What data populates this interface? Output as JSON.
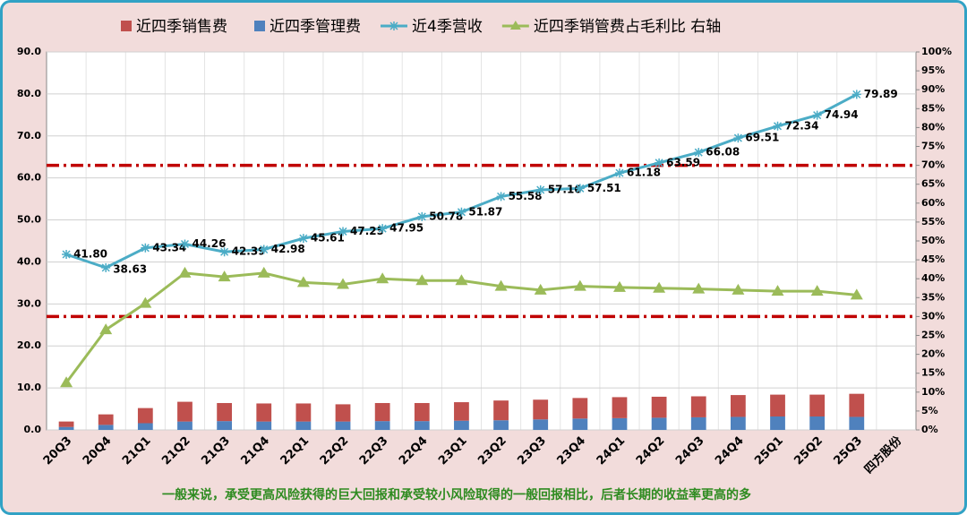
{
  "chart_data": {
    "type": "combo",
    "categories": [
      "20Q3",
      "20Q4",
      "21Q1",
      "21Q2",
      "21Q3",
      "21Q4",
      "22Q1",
      "22Q2",
      "22Q3",
      "22Q4",
      "23Q1",
      "23Q2",
      "23Q3",
      "23Q4",
      "24Q1",
      "24Q2",
      "24Q3",
      "24Q4",
      "25Q1",
      "25Q2",
      "25Q3",
      "四方股份"
    ],
    "series": [
      {
        "name": "近四季销售费",
        "type": "bar",
        "color": "#c0504d",
        "values": [
          1.3,
          2.5,
          3.6,
          4.7,
          4.3,
          4.3,
          4.3,
          4.1,
          4.3,
          4.3,
          4.4,
          4.7,
          4.7,
          4.9,
          5.0,
          5.0,
          5.0,
          5.2,
          5.2,
          5.2,
          5.5,
          null
        ]
      },
      {
        "name": "近四季管理费",
        "type": "bar",
        "color": "#4f81bd",
        "values": [
          0.7,
          1.2,
          1.6,
          2.0,
          2.1,
          2.0,
          2.0,
          2.0,
          2.1,
          2.1,
          2.2,
          2.3,
          2.5,
          2.7,
          2.8,
          2.9,
          3.0,
          3.1,
          3.2,
          3.2,
          3.1,
          null
        ]
      },
      {
        "name": "近4季营收",
        "type": "line",
        "marker": "star",
        "color": "#4bacc6",
        "values": [
          41.8,
          38.63,
          43.34,
          44.26,
          42.39,
          42.98,
          45.61,
          47.25,
          47.95,
          50.78,
          51.87,
          55.58,
          57.16,
          57.51,
          61.18,
          63.59,
          66.08,
          69.51,
          72.34,
          74.94,
          79.89,
          null
        ],
        "value_labels": [
          "41.80",
          "38.63",
          "43.34",
          "44.26",
          "42.39",
          "42.98",
          "45.61",
          "47.25",
          "47.95",
          "50.78",
          "51.87",
          "55.58",
          "57.16",
          "57.51",
          "61.18",
          "63.59",
          "66.08",
          "69.51",
          "72.34",
          "74.94",
          "79.89",
          null
        ]
      },
      {
        "name": "近四季销管费占毛利比  右轴",
        "type": "line",
        "marker": "triangle",
        "color": "#9bbb59",
        "axis": "y2",
        "values": [
          12.5,
          26.5,
          33.5,
          41.5,
          40.5,
          41.5,
          39,
          38.5,
          40,
          39.5,
          39.5,
          38,
          37,
          38,
          37.7,
          37.5,
          37.3,
          37,
          36.7,
          36.7,
          35.7,
          null
        ]
      }
    ],
    "ylim": [
      0,
      90
    ],
    "yticks": [
      {
        "value": 0,
        "label": "0.0"
      },
      {
        "value": 10,
        "label": "10.0"
      },
      {
        "value": 20,
        "label": "20.0"
      },
      {
        "value": 30,
        "label": "30.0"
      },
      {
        "value": 40,
        "label": "40.0"
      },
      {
        "value": 50,
        "label": "50.0"
      },
      {
        "value": 60,
        "label": "60.0"
      },
      {
        "value": 70,
        "label": "70.0"
      },
      {
        "value": 80,
        "label": "80.0"
      },
      {
        "value": 90,
        "label": "90.0"
      }
    ],
    "y2lim": [
      0,
      100
    ],
    "y2ticks": [
      {
        "value": 0,
        "label": "0%"
      },
      {
        "value": 5,
        "label": "5%"
      },
      {
        "value": 10,
        "label": "10%"
      },
      {
        "value": 15,
        "label": "15%"
      },
      {
        "value": 20,
        "label": "20%"
      },
      {
        "value": 25,
        "label": "25%"
      },
      {
        "value": 30,
        "label": "30%"
      },
      {
        "value": 35,
        "label": "35%"
      },
      {
        "value": 40,
        "label": "40%"
      },
      {
        "value": 45,
        "label": "45%"
      },
      {
        "value": 50,
        "label": "50%"
      },
      {
        "value": 55,
        "label": "55%"
      },
      {
        "value": 60,
        "label": "60%"
      },
      {
        "value": 65,
        "label": "65%"
      },
      {
        "value": 70,
        "label": "70%"
      },
      {
        "value": 75,
        "label": "75%"
      },
      {
        "value": 80,
        "label": "80%"
      },
      {
        "value": 85,
        "label": "85%"
      },
      {
        "value": 90,
        "label": "90%"
      },
      {
        "value": 95,
        "label": "95%"
      },
      {
        "value": 100,
        "label": "100%"
      }
    ],
    "reference_lines": [
      {
        "value": 70,
        "axis": "y2",
        "color": "#c00000"
      },
      {
        "value": 30,
        "axis": "y2",
        "color": "#c00000"
      }
    ],
    "grid": true,
    "legend": "top",
    "note": "一般来说，承受更高风险获得的巨大回报和承受较小风险取得的一般回报相比，后者长期的收益率更高的多"
  }
}
